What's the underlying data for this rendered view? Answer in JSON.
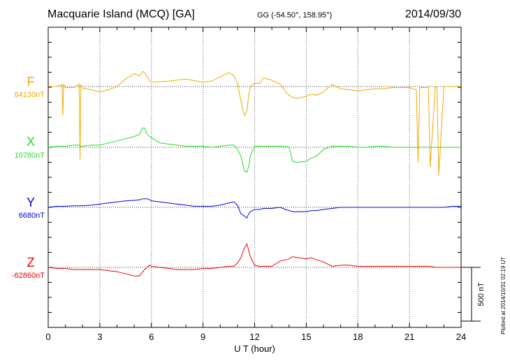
{
  "header": {
    "title": "Macquarie Island (MCQ)  [GA]",
    "coords": "GG (-54.50°, 158.95°)",
    "date": "2014/09/30",
    "plotted": "Plotted at 2014/10/31 02:19 UT"
  },
  "chart_data": {
    "type": "line",
    "title": "Macquarie Island (MCQ)  [GA]",
    "xlabel": "U T (hour)",
    "xlim": [
      0,
      24
    ],
    "xticks": [
      0,
      3,
      6,
      9,
      12,
      15,
      18,
      21,
      24
    ],
    "grid": true,
    "scale_bar": {
      "label": "500 nT",
      "nT": 500
    },
    "x": [
      0,
      0.5,
      0.8,
      0.85,
      0.9,
      1.0,
      1.5,
      1.8,
      1.85,
      1.9,
      2.0,
      2.5,
      3.0,
      3.5,
      4.0,
      4.5,
      5.0,
      5.3,
      5.5,
      5.6,
      5.75,
      5.9,
      6.0,
      6.5,
      7.0,
      7.5,
      8.0,
      8.5,
      9.0,
      9.5,
      10.0,
      10.5,
      10.8,
      11.0,
      11.2,
      11.4,
      11.55,
      11.65,
      11.75,
      12.0,
      12.3,
      12.5,
      13.0,
      13.5,
      13.8,
      14.0,
      14.2,
      14.5,
      15.0,
      15.3,
      15.6,
      16.0,
      16.5,
      17.0,
      17.5,
      18.0,
      18.5,
      19.0,
      19.5,
      20.0,
      20.5,
      21.0,
      21.4,
      21.5,
      21.6,
      22.0,
      22.1,
      22.2,
      22.5,
      22.6,
      22.7,
      23.0,
      23.5,
      24.0
    ],
    "series": [
      {
        "name": "F",
        "color": "#f2a900",
        "baseline_label": "64130nT",
        "values": [
          64130,
          64130,
          64150,
          63860,
          64150,
          64120,
          64120,
          64150,
          63450,
          64150,
          64115,
          64100,
          64080,
          64100,
          64130,
          64200,
          64250,
          64230,
          64270,
          64260,
          64220,
          64180,
          64170,
          64175,
          64180,
          64190,
          64200,
          64185,
          64170,
          64180,
          64220,
          64260,
          64230,
          64160,
          64000,
          63860,
          63900,
          64050,
          64130,
          64160,
          64160,
          64210,
          64190,
          64150,
          64080,
          64050,
          64030,
          64020,
          64040,
          64060,
          64050,
          64080,
          64150,
          64110,
          64100,
          64090,
          64100,
          64110,
          64110,
          64120,
          64120,
          64120,
          64100,
          63420,
          64120,
          64120,
          64130,
          63380,
          64130,
          64130,
          63300,
          64130,
          64130,
          64130
        ]
      },
      {
        "name": "X",
        "color": "#22dd22",
        "baseline_label": "10780nT",
        "values": [
          10780,
          10790,
          10790,
          10790,
          10790,
          10790,
          10800,
          10800,
          10800,
          10790,
          10790,
          10800,
          10800,
          10820,
          10840,
          10860,
          10880,
          10900,
          10960,
          10960,
          10900,
          10880,
          10870,
          10820,
          10810,
          10800,
          10790,
          10790,
          10790,
          10780,
          10790,
          10800,
          10800,
          10760,
          10700,
          10560,
          10550,
          10600,
          10700,
          10790,
          10790,
          10790,
          10790,
          10790,
          10790,
          10780,
          10650,
          10640,
          10650,
          10680,
          10700,
          10760,
          10790,
          10790,
          10790,
          10780,
          10780,
          10790,
          10790,
          10780,
          10780,
          10780,
          10780,
          10780,
          10780,
          10780,
          10780,
          10780,
          10780,
          10780,
          10780,
          10780,
          10780,
          10780
        ]
      },
      {
        "name": "Y",
        "color": "#0000dd",
        "baseline_label": "6680nT",
        "values": [
          6680,
          6690,
          6690,
          6690,
          6690,
          6690,
          6695,
          6695,
          6695,
          6695,
          6695,
          6700,
          6710,
          6720,
          6730,
          6740,
          6745,
          6750,
          6760,
          6760,
          6760,
          6750,
          6740,
          6730,
          6720,
          6710,
          6700,
          6690,
          6690,
          6690,
          6700,
          6720,
          6730,
          6700,
          6620,
          6600,
          6580,
          6620,
          6640,
          6660,
          6660,
          6670,
          6670,
          6680,
          6660,
          6650,
          6640,
          6640,
          6640,
          6650,
          6650,
          6660,
          6670,
          6680,
          6680,
          6680,
          6680,
          6680,
          6680,
          6680,
          6680,
          6680,
          6680,
          6680,
          6680,
          6680,
          6680,
          6680,
          6680,
          6680,
          6680,
          6680,
          6690,
          6690
        ]
      },
      {
        "name": "Z",
        "color": "#ee0000",
        "baseline_label": "-62860nT",
        "values": [
          -62860,
          -62870,
          -62870,
          -62870,
          -62870,
          -62870,
          -62880,
          -62880,
          -62880,
          -62880,
          -62880,
          -62880,
          -62880,
          -62890,
          -62900,
          -62920,
          -62940,
          -62940,
          -62900,
          -62880,
          -62860,
          -62840,
          -62850,
          -62860,
          -62870,
          -62880,
          -62880,
          -62880,
          -62870,
          -62870,
          -62860,
          -62850,
          -62850,
          -62820,
          -62770,
          -62680,
          -62640,
          -62700,
          -62760,
          -62840,
          -62850,
          -62850,
          -62850,
          -62800,
          -62790,
          -62780,
          -62760,
          -62770,
          -62780,
          -62770,
          -62790,
          -62810,
          -62850,
          -62840,
          -62840,
          -62850,
          -62850,
          -62850,
          -62850,
          -62850,
          -62850,
          -62850,
          -62850,
          -62850,
          -62850,
          -62850,
          -62850,
          -62850,
          -62860,
          -62860,
          -62860,
          -62860,
          -62860,
          -62860
        ]
      }
    ]
  }
}
